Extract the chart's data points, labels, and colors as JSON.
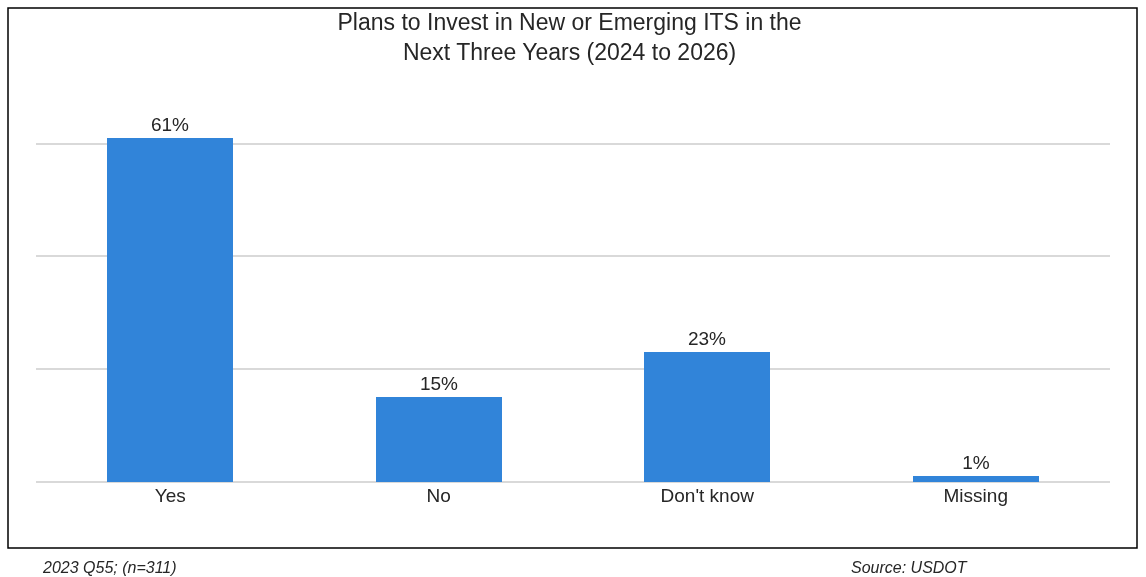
{
  "chart_data": {
    "type": "bar",
    "title": "Plans to Invest in New or Emerging ITS in the\nNext Three Years (2024 to 2026)",
    "categories": [
      "Yes",
      "No",
      "Don't know",
      "Missing"
    ],
    "values": [
      61,
      15,
      23,
      1
    ],
    "color": "#3184d9",
    "grid": "y",
    "tick_labels": "x",
    "legend": false,
    "value_labels": [
      "61%",
      "15%",
      "23%",
      "1%"
    ],
    "annotations": [
      "2023 Q55; (n=311)",
      "Source: USDOT"
    ]
  }
}
